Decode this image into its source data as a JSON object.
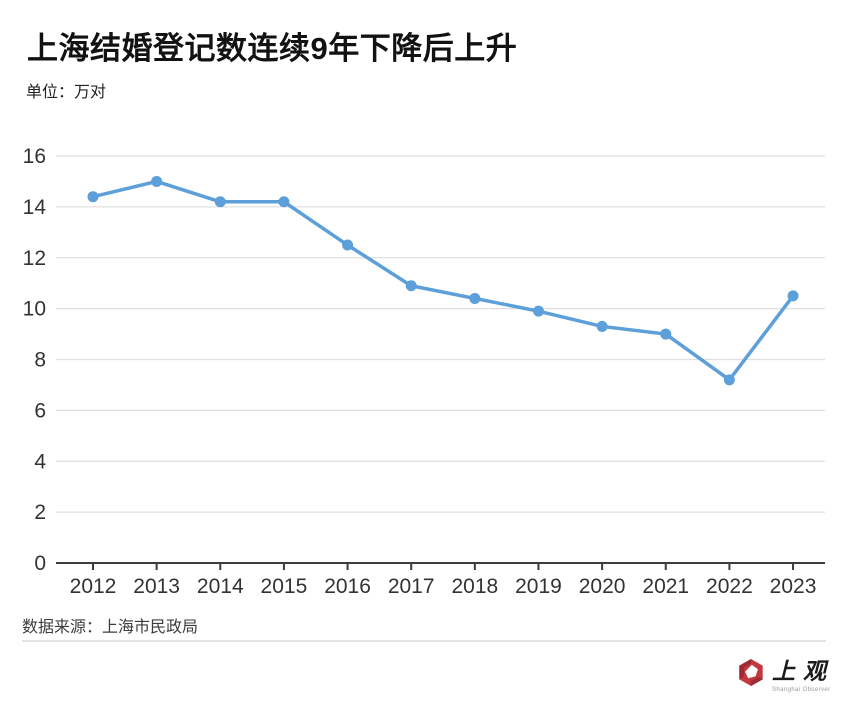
{
  "header": {
    "title": "上海结婚登记数连续9年下降后上升",
    "unit_label": "单位：万对"
  },
  "chart_data": {
    "type": "line",
    "title": "上海结婚登记数连续9年下降后上升",
    "unit": "万对",
    "categories": [
      "2012",
      "2013",
      "2014",
      "2015",
      "2016",
      "2017",
      "2018",
      "2019",
      "2020",
      "2021",
      "2022",
      "2023"
    ],
    "values": [
      14.4,
      15.0,
      14.2,
      14.2,
      12.5,
      10.9,
      10.4,
      9.9,
      9.3,
      9.0,
      7.2,
      10.5
    ],
    "ylim": [
      0,
      16
    ],
    "yticks": [
      0,
      2,
      4,
      6,
      8,
      10,
      12,
      14,
      16
    ],
    "grid": true,
    "legend": "none",
    "line_color": "#5c9fd9",
    "grid_color": "#e0e0e0",
    "axis_color": "#3c3c3c",
    "tick_label_color": "#333333"
  },
  "footer": {
    "source": "数据来源：上海市民政局",
    "logo_text": "上观",
    "logo_subtext": "Shanghai Observer",
    "logo_color": "#c23a40",
    "logo_accent_color": "#9e2b31"
  }
}
